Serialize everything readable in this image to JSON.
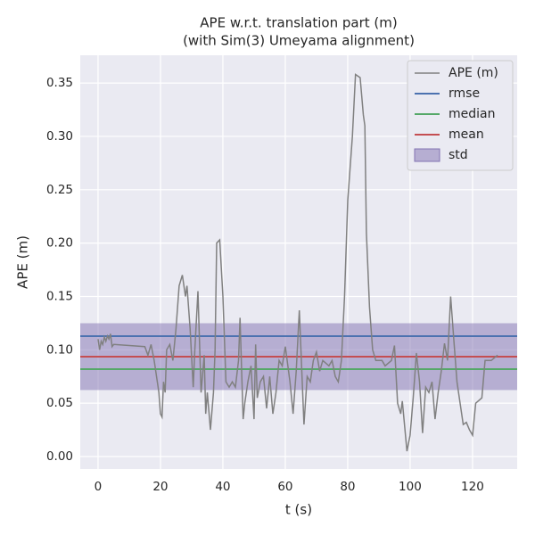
{
  "chart_data": {
    "type": "line",
    "title": "APE w.r.t. translation part (m)",
    "subtitle": "(with Sim(3) Umeyama alignment)",
    "xlabel": "t (s)",
    "ylabel": "APE (m)",
    "xlim": [
      -5.7,
      134.3
    ],
    "ylim": [
      -0.0117,
      0.376
    ],
    "xticks": [
      0,
      20,
      40,
      60,
      80,
      100,
      120
    ],
    "yticks": [
      {
        "value": 0,
        "label": "0.00"
      },
      {
        "value": 0.05,
        "label": "0.05"
      },
      {
        "value": 0.1,
        "label": "0.10"
      },
      {
        "value": 0.15,
        "label": "0.15"
      },
      {
        "value": 0.2,
        "label": "0.20"
      },
      {
        "value": 0.25,
        "label": "0.25"
      },
      {
        "value": 0.3,
        "label": "0.30"
      },
      {
        "value": 0.35,
        "label": "0.35"
      }
    ],
    "grid": true,
    "legend": "upper right",
    "series": [
      {
        "name": "APE (m)",
        "color": "#808080",
        "style": "line",
        "x": [
          0,
          0.5,
          1,
          1.5,
          2,
          2.5,
          3,
          3.5,
          4,
          4.5,
          5,
          15,
          16,
          17,
          18,
          19.5,
          20,
          20.5,
          21,
          21.5,
          22,
          23,
          24,
          25,
          26,
          27,
          28,
          28.5,
          29.5,
          30.5,
          31,
          32,
          33,
          34,
          34.5,
          35,
          36,
          37,
          37.5,
          38,
          39,
          40,
          41,
          42,
          43,
          44,
          45,
          45.5,
          46,
          46.5,
          47,
          48,
          49,
          50,
          50.5,
          51,
          52,
          53,
          54,
          55,
          56,
          57,
          58,
          59,
          60,
          61.5,
          62.5,
          63.5,
          64.5,
          66,
          67,
          68,
          69,
          70,
          71,
          72,
          74,
          75,
          76,
          77,
          78,
          79,
          80,
          81.5,
          82.5,
          84,
          85,
          85.5,
          86,
          87,
          88,
          89,
          91,
          92,
          94,
          95,
          96,
          97,
          97.5,
          99,
          100,
          101,
          102,
          103,
          104,
          105,
          106,
          107,
          108,
          109,
          110,
          111,
          112,
          113,
          114,
          115,
          116,
          117,
          118,
          119,
          120,
          121,
          123,
          124,
          126,
          128
        ],
        "values": [
          0.11,
          0.1,
          0.108,
          0.105,
          0.112,
          0.108,
          0.113,
          0.11,
          0.115,
          0.103,
          0.105,
          0.103,
          0.095,
          0.105,
          0.09,
          0.06,
          0.04,
          0.037,
          0.07,
          0.06,
          0.1,
          0.105,
          0.09,
          0.12,
          0.16,
          0.17,
          0.15,
          0.16,
          0.12,
          0.065,
          0.1,
          0.155,
          0.06,
          0.095,
          0.04,
          0.06,
          0.025,
          0.06,
          0.1,
          0.2,
          0.203,
          0.15,
          0.07,
          0.065,
          0.07,
          0.065,
          0.09,
          0.13,
          0.08,
          0.035,
          0.05,
          0.07,
          0.085,
          0.035,
          0.105,
          0.055,
          0.07,
          0.075,
          0.045,
          0.075,
          0.04,
          0.06,
          0.09,
          0.085,
          0.103,
          0.07,
          0.04,
          0.08,
          0.137,
          0.03,
          0.075,
          0.07,
          0.09,
          0.098,
          0.08,
          0.09,
          0.085,
          0.09,
          0.075,
          0.07,
          0.09,
          0.15,
          0.24,
          0.3,
          0.358,
          0.355,
          0.32,
          0.31,
          0.21,
          0.14,
          0.1,
          0.09,
          0.09,
          0.085,
          0.09,
          0.104,
          0.05,
          0.04,
          0.052,
          0.005,
          0.02,
          0.055,
          0.097,
          0.07,
          0.022,
          0.065,
          0.06,
          0.07,
          0.035,
          0.06,
          0.08,
          0.106,
          0.09,
          0.15,
          0.11,
          0.07,
          0.05,
          0.03,
          0.032,
          0.025,
          0.02,
          0.05,
          0.055,
          0.09,
          0.09,
          0.095
        ]
      },
      {
        "name": "rmse",
        "color": "#4c72b0",
        "style": "hline",
        "value": 0.1128
      },
      {
        "name": "median",
        "color": "#55a868",
        "style": "hline",
        "value": 0.0819
      },
      {
        "name": "mean",
        "color": "#c44e52",
        "style": "hline",
        "value": 0.0936
      },
      {
        "name": "std",
        "color": "#8172b2",
        "style": "band",
        "around": "mean",
        "value": 0.0313
      }
    ]
  }
}
